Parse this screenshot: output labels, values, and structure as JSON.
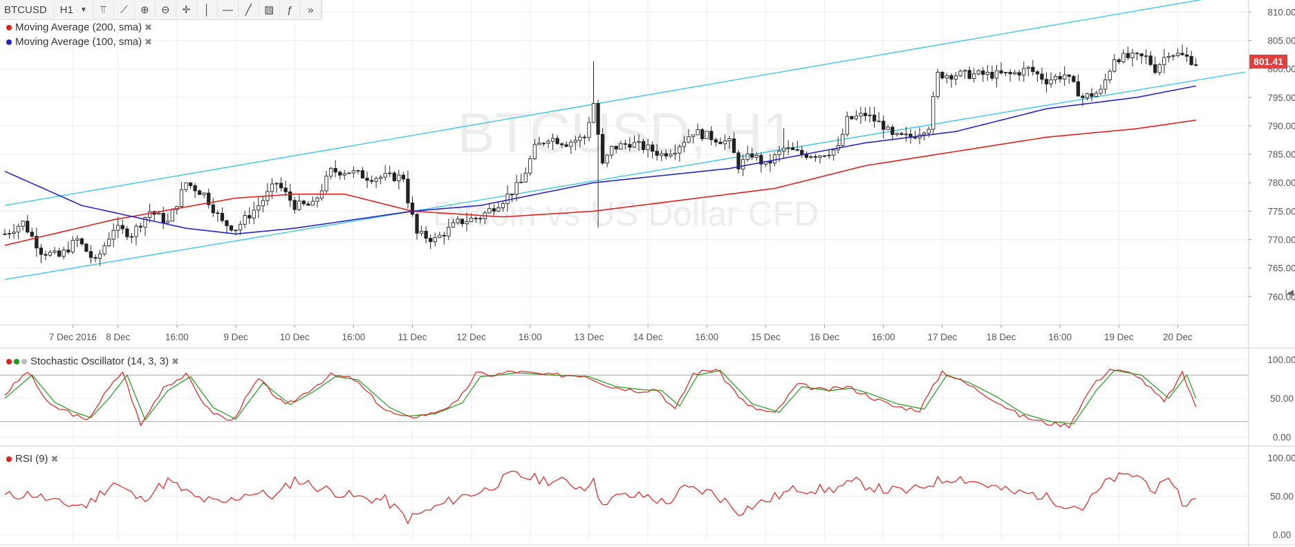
{
  "toolbar": {
    "symbol": "BTCUSD",
    "interval": "H1",
    "buttons": [
      {
        "name": "bar-style-icon",
        "glyph": "⫪"
      },
      {
        "name": "indicators-icon",
        "glyph": "⟋"
      },
      {
        "name": "zoom-in-icon",
        "glyph": "⊕"
      },
      {
        "name": "zoom-out-icon",
        "glyph": "⊖"
      },
      {
        "name": "crosshair-icon",
        "glyph": "✛"
      },
      {
        "name": "vertical-line-icon",
        "glyph": "│"
      },
      {
        "name": "horizontal-line-icon",
        "glyph": "—"
      },
      {
        "name": "trend-line-icon",
        "glyph": "╱"
      },
      {
        "name": "fib-icon",
        "glyph": "▨"
      },
      {
        "name": "function-icon",
        "glyph": "ƒ"
      },
      {
        "name": "forward-icon",
        "glyph": "»"
      }
    ]
  },
  "watermark": {
    "symbol": "BTCUSD, H1",
    "description": "Bitcoin vs US Dollar CFD"
  },
  "legend": {
    "ma200": {
      "label": "Moving Average (200, sma)",
      "color": "#e0201c"
    },
    "ma100": {
      "label": "Moving Average (100, sma)",
      "color": "#2424c8"
    },
    "stoch": {
      "label": "Stochastic Oscillator (14, 3, 3)"
    },
    "rsi": {
      "label": "RSI (9)"
    }
  },
  "last_price": "801.41",
  "chart_data": [
    {
      "type": "candlestick",
      "axis": {
        "y_ticks": [
          760,
          765,
          770,
          775,
          780,
          785,
          790,
          795,
          800,
          805,
          810
        ],
        "ylim": [
          755,
          811.5
        ],
        "x_tick_labels": [
          "7 Dec 2016",
          "8 Dec",
          "16:00",
          "9 Dec",
          "10 Dec",
          "16:00",
          "11 Dec",
          "12 Dec",
          "16:00",
          "13 Dec",
          "14 Dec",
          "16:00",
          "15 Dec",
          "16 Dec",
          "16:00",
          "17 Dec",
          "18 Dec",
          "16:00",
          "19 Dec",
          "20 Dec"
        ],
        "x_tick_bars": [
          15,
          25,
          38,
          51,
          64,
          77,
          90,
          103,
          116,
          129,
          142,
          155,
          168,
          181,
          194,
          207,
          220,
          233,
          246,
          259
        ]
      },
      "bars": 264,
      "ohlc_keyframes": [
        [
          0,
          771
        ],
        [
          4,
          773
        ],
        [
          8,
          768
        ],
        [
          12,
          767
        ],
        [
          16,
          770
        ],
        [
          20,
          766
        ],
        [
          24,
          772
        ],
        [
          28,
          771
        ],
        [
          32,
          775
        ],
        [
          36,
          773
        ],
        [
          40,
          780
        ],
        [
          44,
          778
        ],
        [
          48,
          773
        ],
        [
          51,
          772
        ],
        [
          56,
          776
        ],
        [
          60,
          780
        ],
        [
          64,
          776
        ],
        [
          68,
          776
        ],
        [
          72,
          782
        ],
        [
          76,
          782
        ],
        [
          80,
          781
        ],
        [
          84,
          781
        ],
        [
          88,
          781
        ],
        [
          89,
          777
        ],
        [
          91,
          771
        ],
        [
          95,
          770
        ],
        [
          100,
          773
        ],
        [
          105,
          774
        ],
        [
          110,
          777
        ],
        [
          114,
          780
        ],
        [
          117,
          786
        ],
        [
          120,
          788
        ],
        [
          124,
          787
        ],
        [
          128,
          788
        ],
        [
          130,
          794
        ],
        [
          132,
          783
        ],
        [
          134,
          786
        ],
        [
          138,
          787
        ],
        [
          142,
          786
        ],
        [
          145,
          785
        ],
        [
          148,
          786
        ],
        [
          152,
          789
        ],
        [
          156,
          788
        ],
        [
          160,
          787
        ],
        [
          162,
          783
        ],
        [
          165,
          785
        ],
        [
          168,
          783
        ],
        [
          172,
          786
        ],
        [
          176,
          785
        ],
        [
          180,
          785
        ],
        [
          184,
          786
        ],
        [
          186,
          791
        ],
        [
          190,
          792
        ],
        [
          194,
          790
        ],
        [
          196,
          788
        ],
        [
          200,
          788
        ],
        [
          204,
          790
        ],
        [
          206,
          799
        ],
        [
          210,
          799
        ],
        [
          214,
          799
        ],
        [
          218,
          799
        ],
        [
          222,
          799
        ],
        [
          226,
          800
        ],
        [
          230,
          798
        ],
        [
          234,
          799
        ],
        [
          238,
          795
        ],
        [
          242,
          796
        ],
        [
          245,
          802
        ],
        [
          249,
          802
        ],
        [
          252,
          802
        ],
        [
          254,
          800
        ],
        [
          257,
          803
        ],
        [
          261,
          802
        ],
        [
          263,
          801
        ]
      ],
      "ma200_keyframes": [
        [
          0,
          769
        ],
        [
          24,
          773.5
        ],
        [
          51,
          777.3
        ],
        [
          64,
          778
        ],
        [
          75,
          778
        ],
        [
          90,
          775
        ],
        [
          110,
          774
        ],
        [
          130,
          775
        ],
        [
          150,
          777
        ],
        [
          170,
          779
        ],
        [
          190,
          783
        ],
        [
          210,
          785.5
        ],
        [
          230,
          788
        ],
        [
          250,
          789.5
        ],
        [
          263,
          791
        ]
      ],
      "ma100_keyframes": [
        [
          0,
          782
        ],
        [
          17,
          776
        ],
        [
          40,
          772
        ],
        [
          51,
          771
        ],
        [
          64,
          772
        ],
        [
          90,
          775
        ],
        [
          105,
          776
        ],
        [
          130,
          780
        ],
        [
          160,
          782.5
        ],
        [
          190,
          787
        ],
        [
          210,
          789
        ],
        [
          230,
          793
        ],
        [
          250,
          795
        ],
        [
          263,
          797
        ]
      ],
      "channel_upper": {
        "from": [
          0,
          776
        ],
        "to": [
          263,
          812
        ]
      },
      "channel_lower": {
        "from": [
          0,
          763
        ],
        "to": [
          263,
          798
        ]
      }
    },
    {
      "type": "line",
      "name": "Stochastic Oscillator (14, 3, 3)",
      "y_ticks": [
        "100.00",
        "50.00",
        "0.00"
      ],
      "levels": [
        80,
        20
      ],
      "k_keyframes": [
        [
          0,
          55
        ],
        [
          5,
          85
        ],
        [
          10,
          40
        ],
        [
          14,
          33
        ],
        [
          18,
          20
        ],
        [
          22,
          55
        ],
        [
          26,
          85
        ],
        [
          30,
          15
        ],
        [
          35,
          65
        ],
        [
          40,
          80
        ],
        [
          45,
          35
        ],
        [
          50,
          20
        ],
        [
          56,
          75
        ],
        [
          62,
          40
        ],
        [
          67,
          60
        ],
        [
          72,
          80
        ],
        [
          77,
          75
        ],
        [
          84,
          35
        ],
        [
          88,
          25
        ],
        [
          94,
          30
        ],
        [
          100,
          45
        ],
        [
          104,
          82
        ],
        [
          108,
          80
        ],
        [
          112,
          85
        ],
        [
          120,
          80
        ],
        [
          128,
          80
        ],
        [
          134,
          65
        ],
        [
          140,
          60
        ],
        [
          144,
          62
        ],
        [
          148,
          35
        ],
        [
          152,
          82
        ],
        [
          157,
          88
        ],
        [
          164,
          40
        ],
        [
          170,
          30
        ],
        [
          175,
          68
        ],
        [
          181,
          60
        ],
        [
          186,
          65
        ],
        [
          190,
          55
        ],
        [
          196,
          40
        ],
        [
          202,
          35
        ],
        [
          207,
          85
        ],
        [
          212,
          70
        ],
        [
          218,
          50
        ],
        [
          224,
          28
        ],
        [
          230,
          18
        ],
        [
          235,
          15
        ],
        [
          240,
          65
        ],
        [
          244,
          88
        ],
        [
          250,
          80
        ],
        [
          256,
          45
        ],
        [
          260,
          82
        ],
        [
          263,
          40
        ]
      ],
      "d_keyframes": [
        [
          0,
          50
        ],
        [
          6,
          80
        ],
        [
          11,
          45
        ],
        [
          15,
          33
        ],
        [
          19,
          25
        ],
        [
          23,
          50
        ],
        [
          27,
          80
        ],
        [
          31,
          22
        ],
        [
          36,
          60
        ],
        [
          41,
          78
        ],
        [
          46,
          38
        ],
        [
          51,
          23
        ],
        [
          57,
          70
        ],
        [
          63,
          42
        ],
        [
          68,
          58
        ],
        [
          73,
          78
        ],
        [
          78,
          74
        ],
        [
          85,
          38
        ],
        [
          89,
          27
        ],
        [
          95,
          30
        ],
        [
          101,
          44
        ],
        [
          105,
          78
        ],
        [
          109,
          80
        ],
        [
          113,
          83
        ],
        [
          121,
          80
        ],
        [
          129,
          78
        ],
        [
          135,
          65
        ],
        [
          141,
          61
        ],
        [
          145,
          60
        ],
        [
          149,
          40
        ],
        [
          153,
          80
        ],
        [
          158,
          86
        ],
        [
          165,
          43
        ],
        [
          171,
          32
        ],
        [
          176,
          65
        ],
        [
          182,
          60
        ],
        [
          187,
          63
        ],
        [
          191,
          56
        ],
        [
          197,
          43
        ],
        [
          203,
          36
        ],
        [
          208,
          80
        ],
        [
          213,
          70
        ],
        [
          219,
          52
        ],
        [
          225,
          30
        ],
        [
          231,
          20
        ],
        [
          236,
          17
        ],
        [
          241,
          60
        ],
        [
          245,
          86
        ],
        [
          251,
          80
        ],
        [
          257,
          50
        ],
        [
          261,
          80
        ],
        [
          263,
          50
        ]
      ]
    },
    {
      "type": "line",
      "name": "RSI (9)",
      "y_ticks": [
        "100.00",
        "50.00",
        "0.00"
      ],
      "keyframes": [
        [
          0,
          50
        ],
        [
          6,
          53
        ],
        [
          12,
          40
        ],
        [
          18,
          38
        ],
        [
          24,
          68
        ],
        [
          30,
          45
        ],
        [
          36,
          70
        ],
        [
          42,
          48
        ],
        [
          48,
          40
        ],
        [
          54,
          55
        ],
        [
          60,
          50
        ],
        [
          64,
          72
        ],
        [
          70,
          60
        ],
        [
          78,
          48
        ],
        [
          84,
          45
        ],
        [
          89,
          20
        ],
        [
          95,
          35
        ],
        [
          100,
          48
        ],
        [
          106,
          58
        ],
        [
          112,
          78
        ],
        [
          118,
          72
        ],
        [
          124,
          68
        ],
        [
          128,
          60
        ],
        [
          130,
          78
        ],
        [
          131,
          42
        ],
        [
          136,
          50
        ],
        [
          142,
          50
        ],
        [
          146,
          40
        ],
        [
          150,
          60
        ],
        [
          156,
          55
        ],
        [
          160,
          40
        ],
        [
          162,
          30
        ],
        [
          168,
          44
        ],
        [
          175,
          60
        ],
        [
          182,
          58
        ],
        [
          188,
          68
        ],
        [
          194,
          58
        ],
        [
          200,
          56
        ],
        [
          205,
          68
        ],
        [
          210,
          75
        ],
        [
          216,
          66
        ],
        [
          222,
          55
        ],
        [
          228,
          52
        ],
        [
          234,
          40
        ],
        [
          238,
          35
        ],
        [
          244,
          72
        ],
        [
          250,
          78
        ],
        [
          254,
          58
        ],
        [
          258,
          70
        ],
        [
          260,
          40
        ],
        [
          263,
          45
        ]
      ]
    }
  ]
}
